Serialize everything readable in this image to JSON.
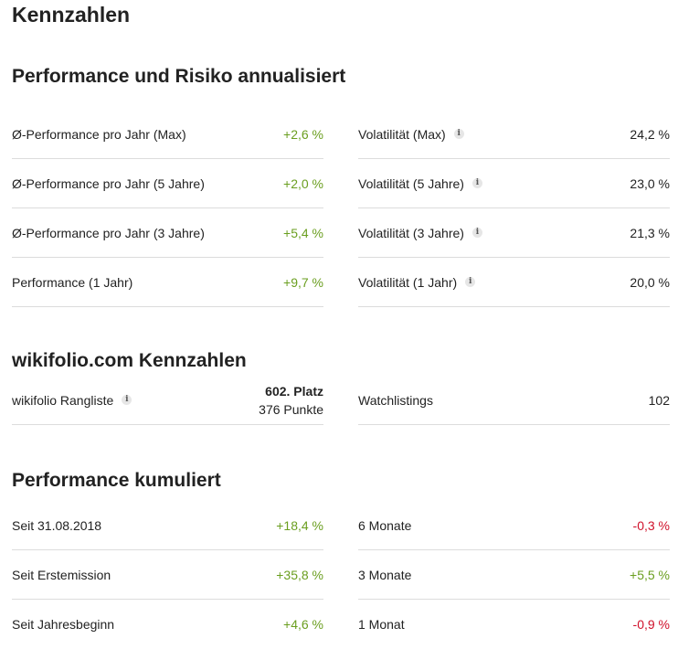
{
  "page_title": "Kennzahlen",
  "risk_section": {
    "title": "Performance und Risiko annualisiert",
    "left": [
      {
        "label": "Ø-Performance pro Jahr (Max)",
        "value": "+2,6 %"
      },
      {
        "label": "Ø-Performance pro Jahr (5 Jahre)",
        "value": "+2,0 %"
      },
      {
        "label": "Ø-Performance pro Jahr (3 Jahre)",
        "value": "+5,4 %"
      },
      {
        "label": "Performance (1 Jahr)",
        "value": "+9,7 %"
      }
    ],
    "right": [
      {
        "label": "Volatilität (Max)",
        "value": "24,2 %"
      },
      {
        "label": "Volatilität (5 Jahre)",
        "value": "23,0 %"
      },
      {
        "label": "Volatilität (3 Jahre)",
        "value": "21,3 %"
      },
      {
        "label": "Volatilität (1 Jahr)",
        "value": "20,0 %"
      }
    ]
  },
  "wikifolio_section": {
    "title": "wikifolio.com Kennzahlen",
    "ranking_label": "wikifolio Rangliste",
    "ranking_place": "602. Platz",
    "ranking_points": "376 Punkte",
    "watchlist_label": "Watchlistings",
    "watchlist_value": "102"
  },
  "cumulative_section": {
    "title": "Performance kumuliert",
    "left": [
      {
        "label": "Seit 31.08.2018",
        "value": "+18,4 %"
      },
      {
        "label": "Seit Erstemission",
        "value": "+35,8 %"
      },
      {
        "label": "Seit Jahresbeginn",
        "value": "+4,6 %"
      }
    ],
    "right": [
      {
        "label": "6 Monate",
        "value": "-0,3 %"
      },
      {
        "label": "3 Monate",
        "value": "+5,5 %"
      },
      {
        "label": "1 Monat",
        "value": "-0,9 %"
      }
    ]
  },
  "info_icon_glyph": "i",
  "colors": {
    "positive": "#6a9e1f",
    "negative": "#d0112b",
    "divider": "#dcdcdc"
  }
}
